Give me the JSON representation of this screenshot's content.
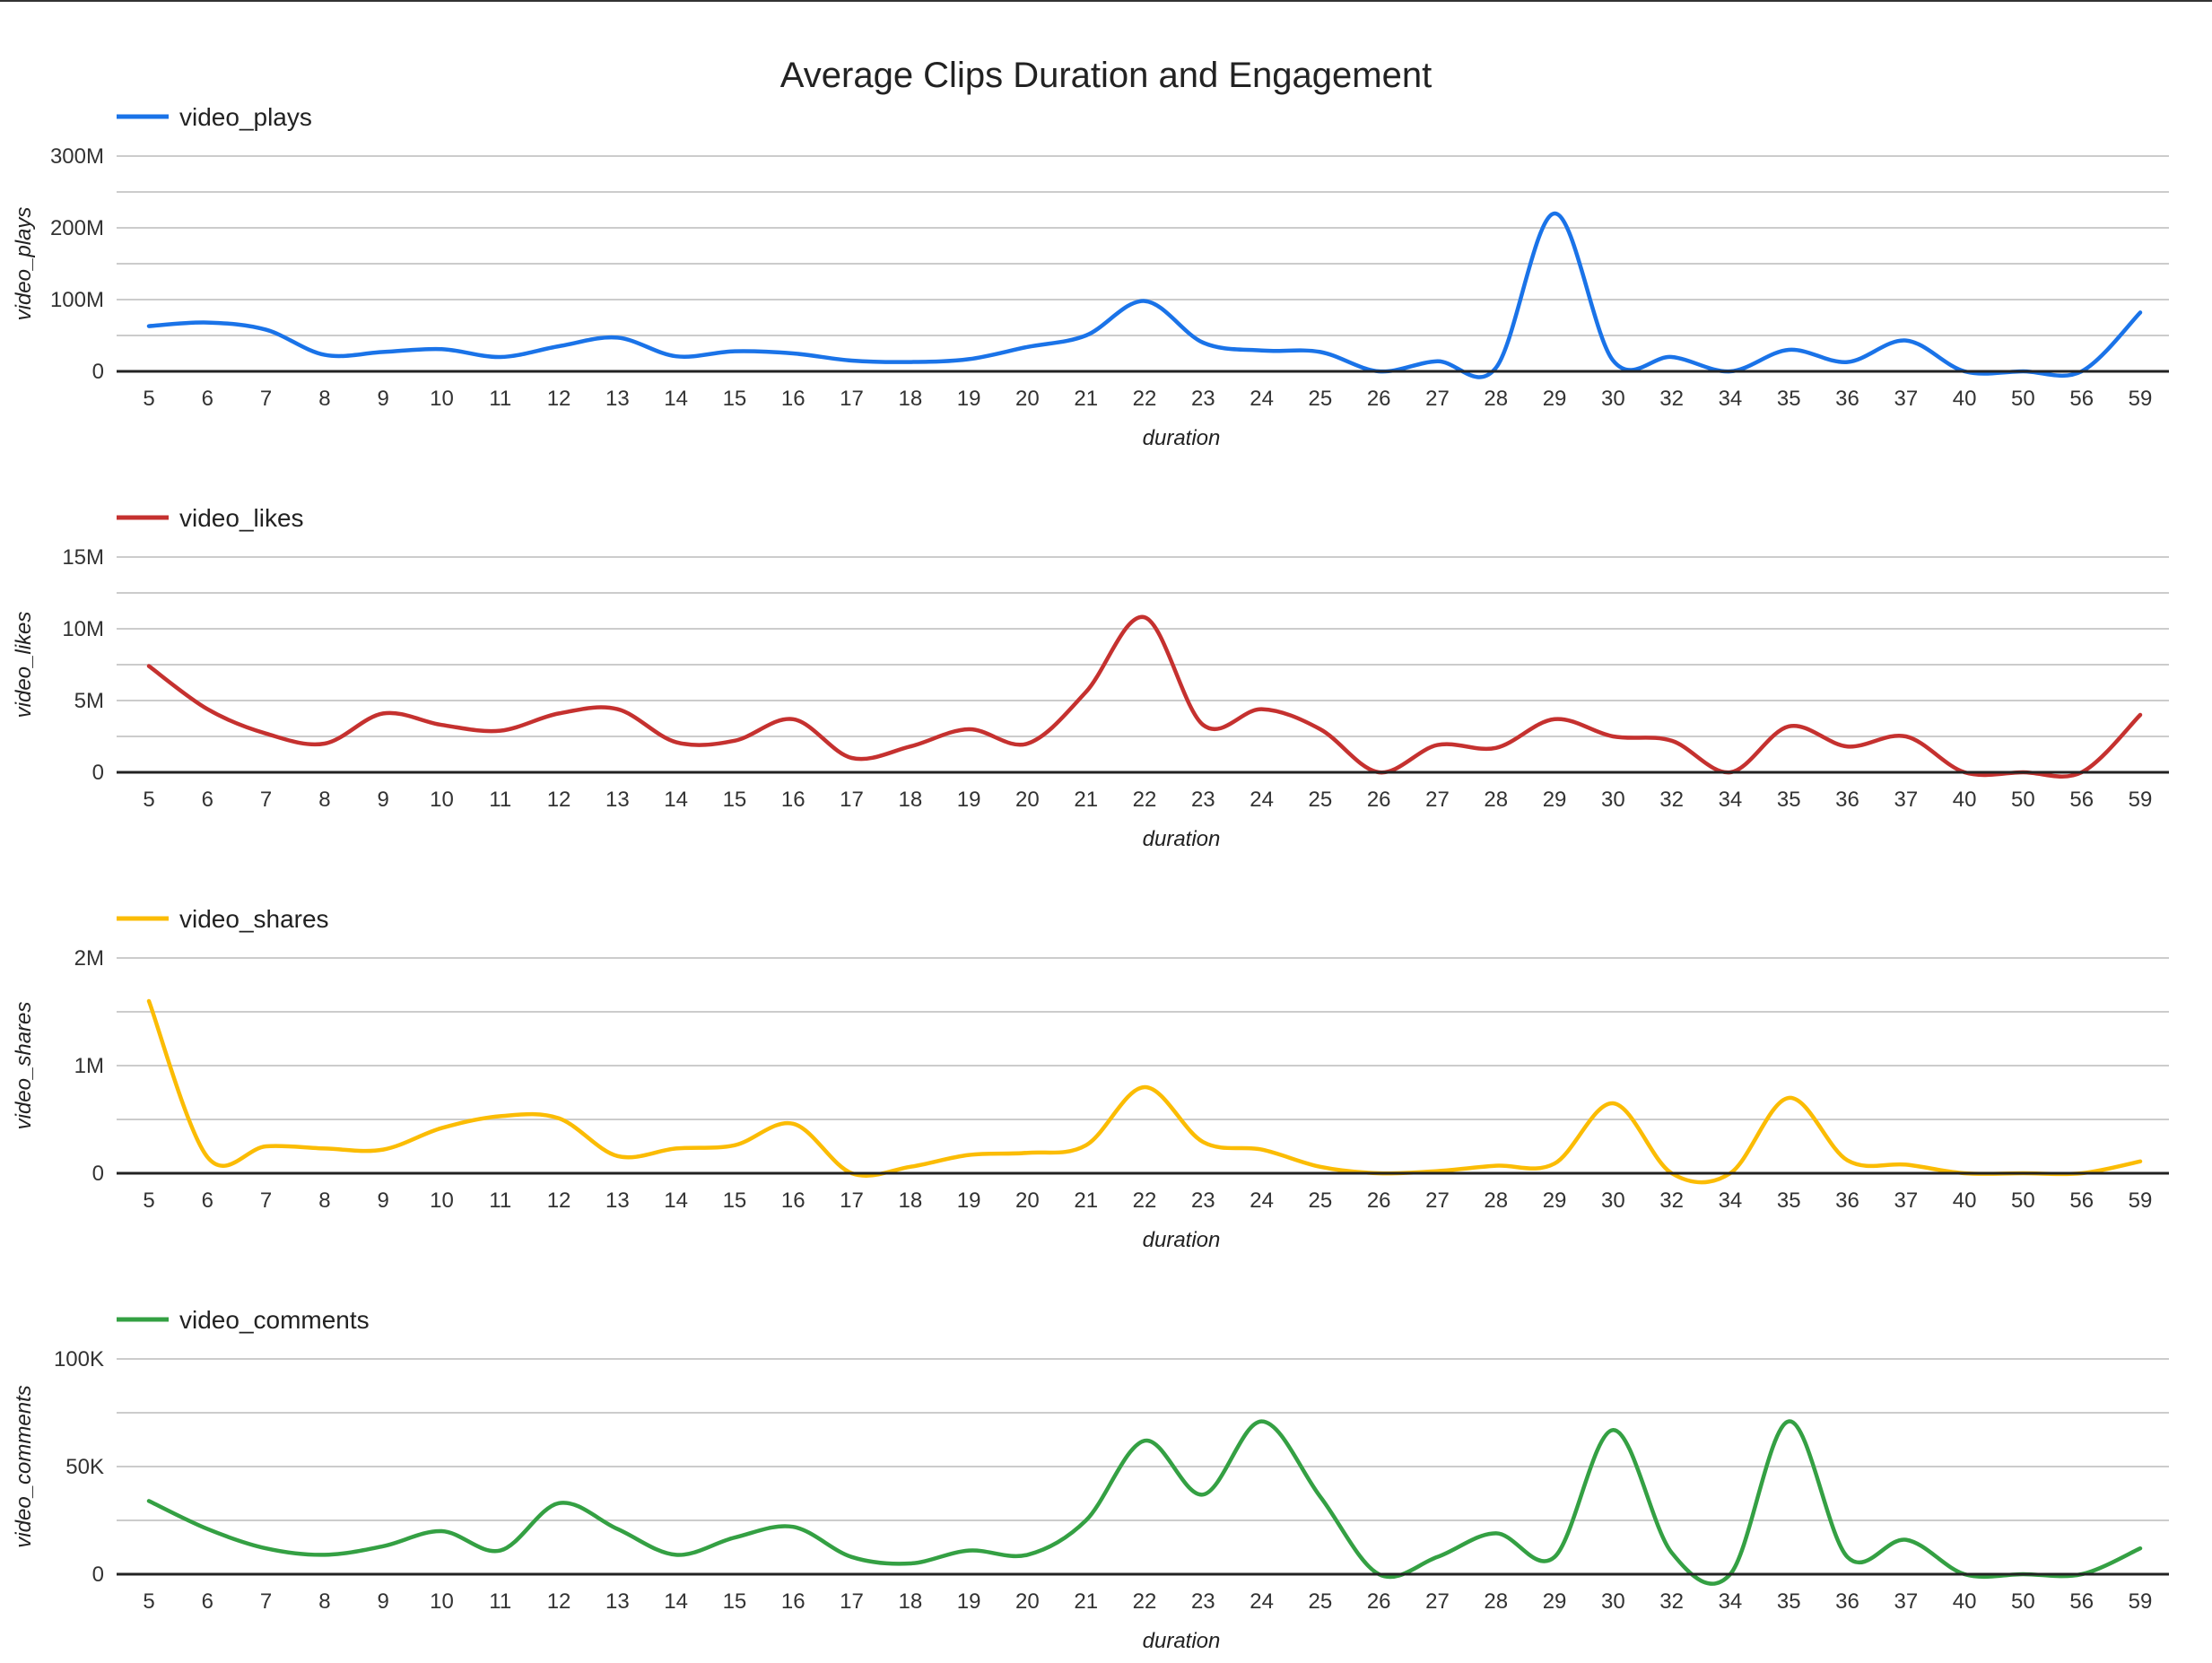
{
  "chart_data": {
    "type": "line",
    "title": "Average Clips Duration and Engagement",
    "categories": [
      "5",
      "6",
      "7",
      "8",
      "9",
      "10",
      "11",
      "12",
      "13",
      "14",
      "15",
      "16",
      "17",
      "18",
      "19",
      "20",
      "21",
      "22",
      "23",
      "24",
      "25",
      "26",
      "27",
      "28",
      "29",
      "30",
      "32",
      "34",
      "35",
      "36",
      "37",
      "40",
      "50",
      "56",
      "59"
    ],
    "xlabel": "duration",
    "panels": [
      {
        "series_name": "video_plays",
        "ylabel": "video_plays",
        "color": "#1a73e8",
        "ylim": [
          0,
          300000000
        ],
        "yticks": [
          0,
          100000000,
          200000000,
          300000000
        ],
        "ytick_labels": [
          "0",
          "100M",
          "200M",
          "300M"
        ],
        "values": [
          63000000,
          68000000,
          58000000,
          23000000,
          27000000,
          31000000,
          20000000,
          35000000,
          47000000,
          21000000,
          28000000,
          25000000,
          15000000,
          13000000,
          17000000,
          34000000,
          50000000,
          98000000,
          40000000,
          29000000,
          27000000,
          0,
          14000000,
          5000000,
          220000000,
          15000000,
          20000000,
          0,
          30000000,
          13000000,
          43000000,
          0,
          0,
          0,
          82000000
        ]
      },
      {
        "series_name": "video_likes",
        "ylabel": "video_likes",
        "color": "#c5312f",
        "ylim": [
          0,
          15000000
        ],
        "yticks": [
          0,
          5000000,
          10000000,
          15000000
        ],
        "ytick_labels": [
          "0",
          "5M",
          "10M",
          "15M"
        ],
        "values": [
          7400000,
          4400000,
          2700000,
          2000000,
          4100000,
          3300000,
          2900000,
          4100000,
          4400000,
          2100000,
          2200000,
          3700000,
          1000000,
          1800000,
          3000000,
          2000000,
          5600000,
          10800000,
          3300000,
          4400000,
          3000000,
          0,
          1900000,
          1700000,
          3700000,
          2500000,
          2200000,
          0,
          3200000,
          1800000,
          2500000,
          0,
          0,
          0,
          4000000
        ]
      },
      {
        "series_name": "video_shares",
        "ylabel": "video_shares",
        "color": "#fbbc04",
        "ylim": [
          0,
          2000000
        ],
        "yticks": [
          0,
          1000000,
          2000000
        ],
        "ytick_labels": [
          "0",
          "1M",
          "2M"
        ],
        "values": [
          1600000,
          150000,
          250000,
          230000,
          220000,
          420000,
          530000,
          510000,
          160000,
          230000,
          260000,
          460000,
          0,
          60000,
          170000,
          190000,
          260000,
          800000,
          290000,
          220000,
          60000,
          0,
          20000,
          70000,
          90000,
          650000,
          0,
          0,
          700000,
          120000,
          80000,
          0,
          0,
          0,
          110000
        ]
      },
      {
        "series_name": "video_comments",
        "ylabel": "video_comments",
        "color": "#34a043",
        "ylim": [
          0,
          100000
        ],
        "yticks": [
          0,
          50000,
          100000
        ],
        "ytick_labels": [
          "0",
          "50K",
          "100K"
        ],
        "values": [
          34000,
          21000,
          12000,
          9000,
          13000,
          20000,
          11000,
          33000,
          21000,
          9000,
          17000,
          22000,
          8000,
          5000,
          11000,
          9000,
          25000,
          62000,
          37000,
          71000,
          36000,
          0,
          8000,
          19000,
          8000,
          67000,
          10000,
          0,
          71000,
          8000,
          16000,
          0,
          0,
          0,
          12000
        ]
      }
    ],
    "legend_position": "top-left",
    "grid": true
  }
}
